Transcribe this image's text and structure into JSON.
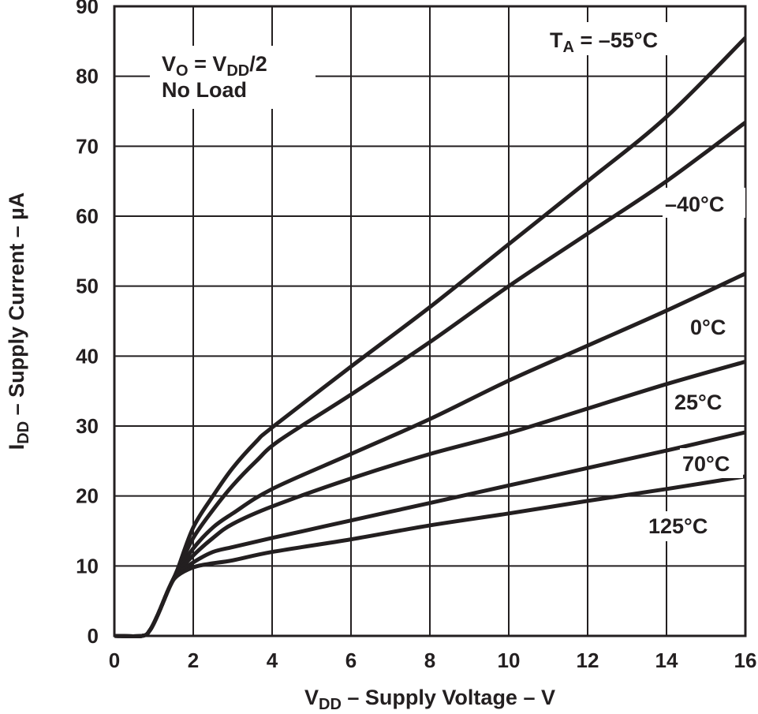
{
  "chart_data": {
    "type": "line",
    "title": "",
    "xlabel": {
      "main": "V",
      "sub": "DD",
      "rest": " – Supply Voltage – V"
    },
    "ylabel": {
      "main": "I",
      "sub": "DD",
      "rest": " – Supply Current – µA"
    },
    "xlim": [
      0,
      16
    ],
    "ylim": [
      0,
      90
    ],
    "xticks": [
      "0",
      "2",
      "4",
      "6",
      "8",
      "10",
      "12",
      "14",
      "16"
    ],
    "yticks": [
      "0",
      "10",
      "20",
      "30",
      "40",
      "50",
      "60",
      "70",
      "80",
      "90"
    ],
    "grid": true,
    "annotation": {
      "line1_a": "V",
      "line1_a_sub": "O",
      "line1_b": " = V",
      "line1_b_sub": "DD",
      "line1_c": "/2",
      "line2": "No Load"
    },
    "ta_label": {
      "main": "T",
      "sub": "A",
      "rest": " = –55°C"
    },
    "series": [
      {
        "name": "–55°C",
        "x": [
          0,
          0.7,
          0.9,
          1.1,
          1.4,
          1.6,
          2,
          2.5,
          3,
          3.6,
          4,
          6,
          8,
          10,
          12,
          14,
          16
        ],
        "y": [
          0,
          0,
          0.8,
          3,
          7,
          9.5,
          15.5,
          20,
          24,
          27.8,
          29.8,
          38.5,
          47,
          56,
          65,
          74.2,
          85.5
        ]
      },
      {
        "name": "–40°C",
        "x": [
          0,
          0.7,
          0.9,
          1.1,
          1.4,
          1.6,
          2,
          2.5,
          3,
          3.6,
          4.2,
          6,
          8,
          10,
          12,
          14,
          16
        ],
        "y": [
          0,
          0,
          0.8,
          3,
          7,
          9.3,
          14,
          18,
          21.5,
          25,
          28,
          34.5,
          42,
          50,
          57.5,
          65,
          73.4
        ]
      },
      {
        "name": "0°C",
        "x": [
          0,
          0.7,
          0.9,
          1.1,
          1.4,
          1.6,
          2,
          2.5,
          3,
          4,
          6,
          8,
          10,
          12,
          14,
          16
        ],
        "y": [
          0,
          0,
          0.8,
          3,
          7,
          9.1,
          12.5,
          15.5,
          17.5,
          21,
          26,
          31,
          36.5,
          41.5,
          46.5,
          51.8
        ]
      },
      {
        "name": "25°C",
        "x": [
          0,
          0.7,
          0.9,
          1.1,
          1.4,
          1.6,
          2,
          2.5,
          3,
          4,
          6,
          8,
          10,
          12,
          14,
          16
        ],
        "y": [
          0,
          0,
          0.8,
          3,
          7,
          9,
          11.5,
          14,
          16,
          18.5,
          22.5,
          26,
          29,
          32.5,
          36,
          39.2
        ]
      },
      {
        "name": "70°C",
        "x": [
          0,
          0.7,
          0.9,
          1.1,
          1.4,
          1.6,
          2,
          2.5,
          3,
          4,
          6,
          8,
          10,
          12,
          14,
          16
        ],
        "y": [
          0,
          0,
          0.8,
          3,
          7,
          8.8,
          10.5,
          12,
          12.7,
          14,
          16.5,
          19,
          21.5,
          24,
          26.5,
          29.1
        ]
      },
      {
        "name": "125°C",
        "x": [
          0,
          0.7,
          0.9,
          1.1,
          1.4,
          1.6,
          2,
          2.4,
          3,
          4,
          6,
          8,
          10,
          12,
          14,
          16
        ],
        "y": [
          0,
          0,
          0.8,
          3,
          7,
          8.6,
          9.8,
          10.3,
          10.8,
          12,
          13.8,
          15.8,
          17.5,
          19.3,
          21,
          22.8
        ]
      }
    ],
    "line_color": "#231f20"
  }
}
